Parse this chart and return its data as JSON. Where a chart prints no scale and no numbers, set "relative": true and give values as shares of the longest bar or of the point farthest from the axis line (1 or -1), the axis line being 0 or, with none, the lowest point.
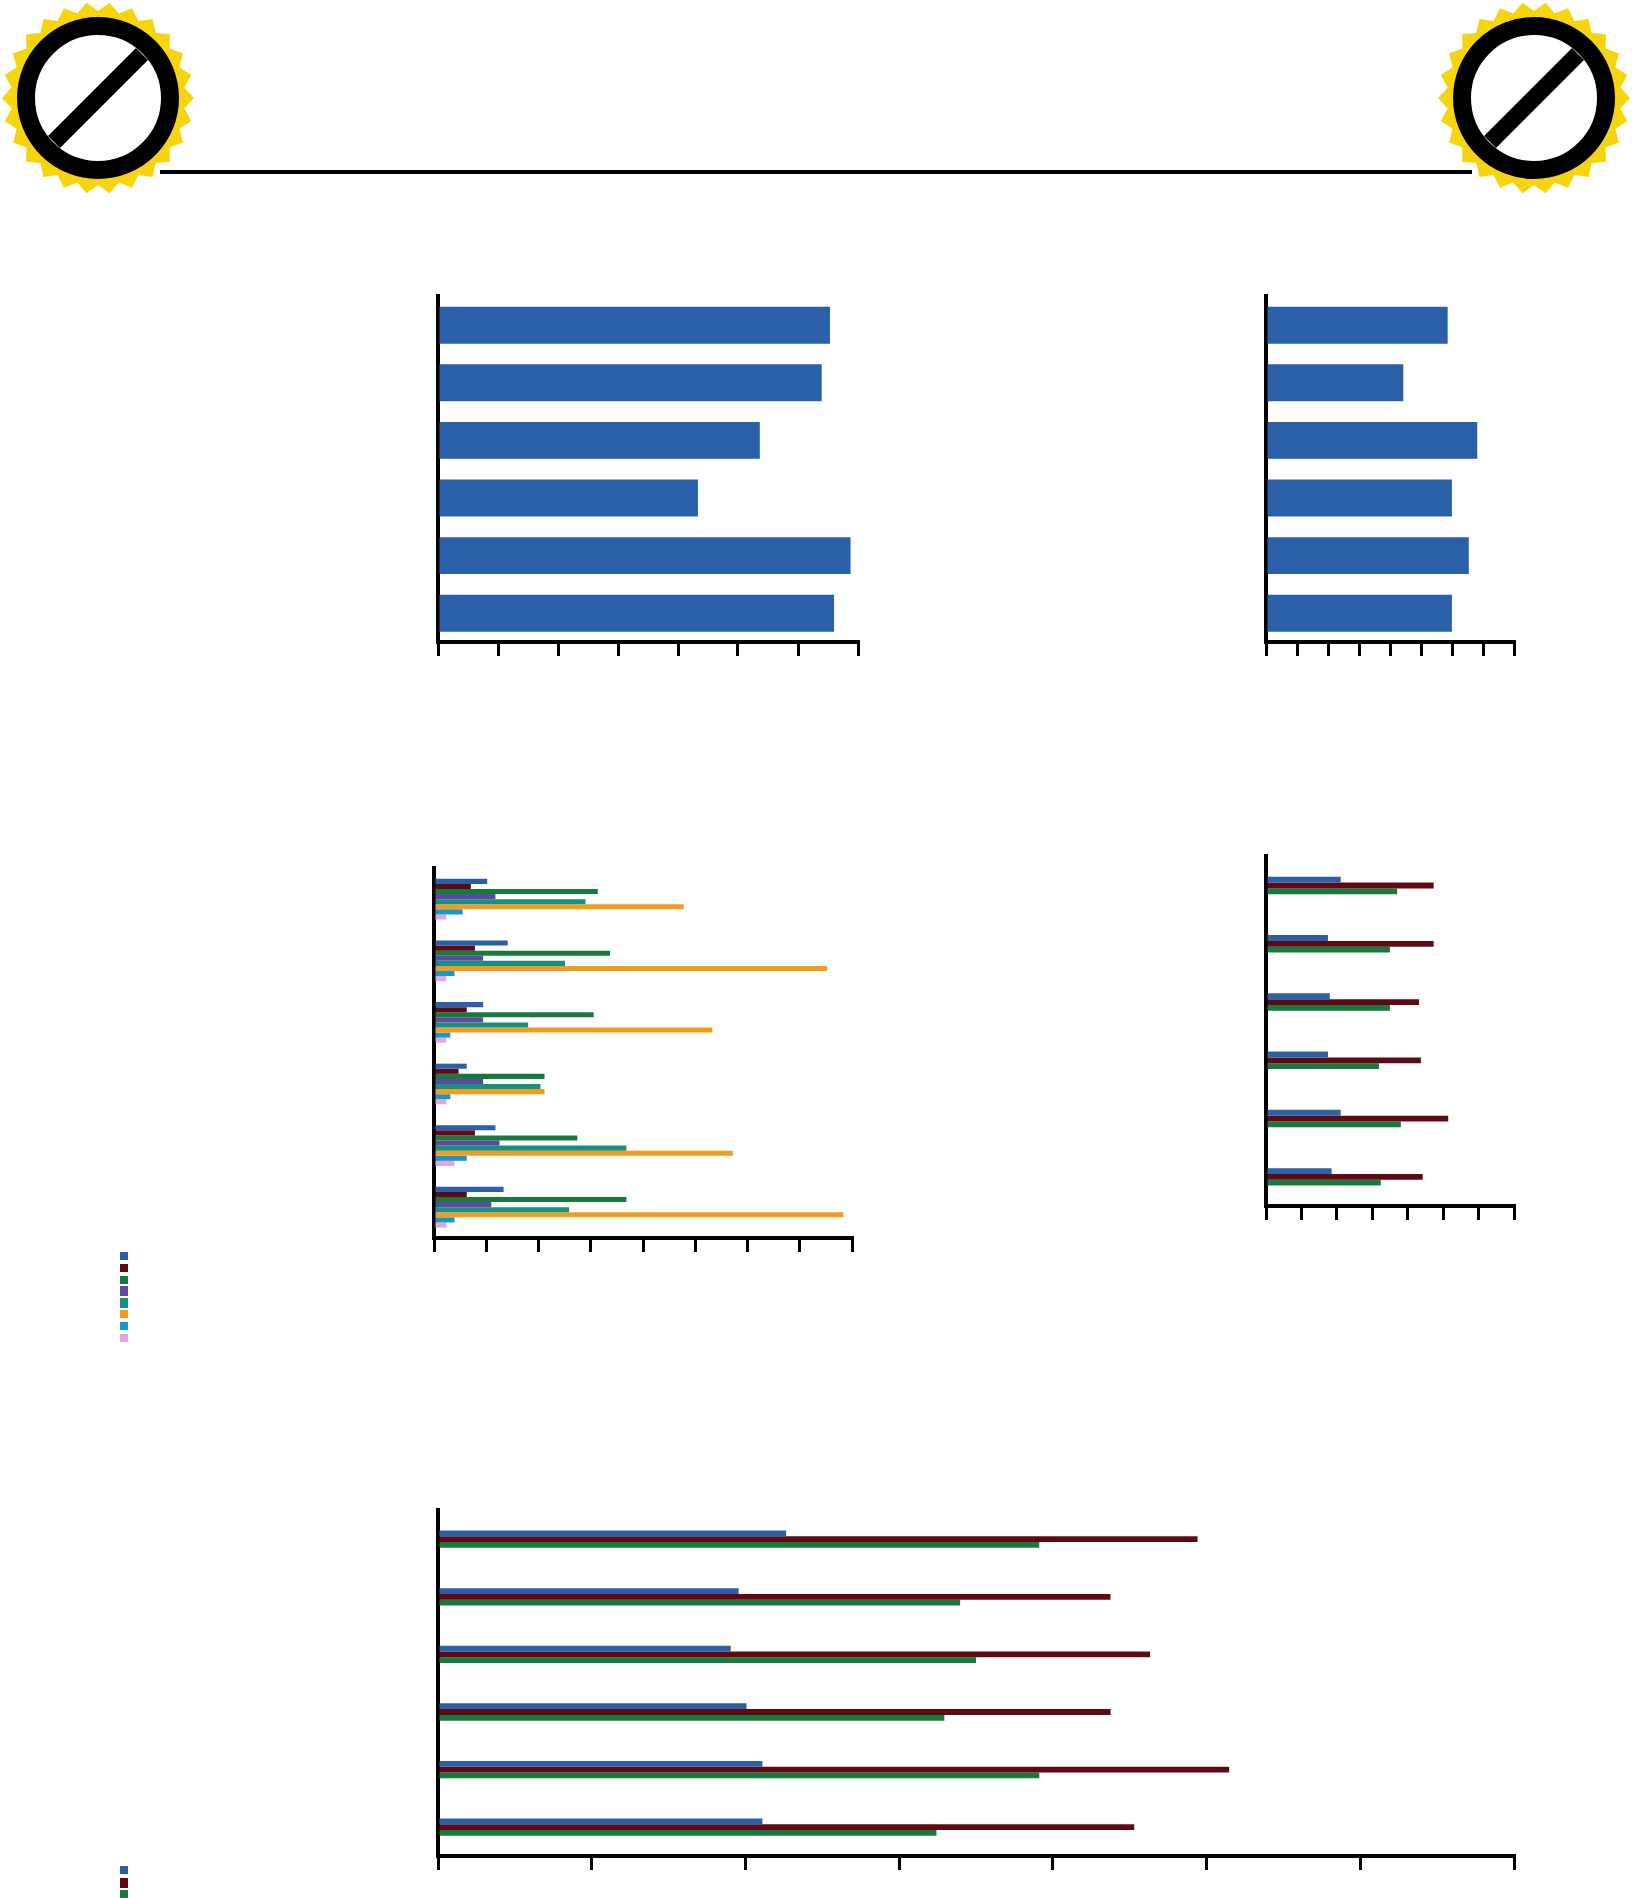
{
  "chart_data": [
    {
      "type": "bar",
      "orientation": "horizontal",
      "relative": true,
      "categories": [
        null,
        null,
        null,
        null,
        null,
        null
      ],
      "color": "#2a5faa",
      "values": [
        0.95,
        0.93,
        0.78,
        0.63,
        1,
        0.96
      ]
    },
    {
      "type": "bar",
      "orientation": "horizontal",
      "relative": true,
      "categories": [
        null,
        null,
        null,
        null,
        null,
        null
      ],
      "color": "#2a5faa",
      "values": [
        0.86,
        0.65,
        1,
        0.88,
        0.96,
        0.88
      ]
    },
    {
      "type": "bar",
      "orientation": "horizontal",
      "relative": true,
      "categories": [
        null,
        null,
        null,
        null,
        null,
        null
      ],
      "series": [
        {
          "color": "#2d5fa6",
          "values": [
            0.13,
            0.18,
            0.12,
            0.08,
            0.15,
            0.17
          ]
        },
        {
          "color": "#5e0a14",
          "values": [
            0.09,
            0.1,
            0.08,
            0.06,
            0.1,
            0.08
          ]
        },
        {
          "color": "#177a3c",
          "values": [
            0.4,
            0.43,
            0.39,
            0.27,
            0.35,
            0.47
          ]
        },
        {
          "color": "#5b4ba0",
          "values": [
            0.15,
            0.12,
            0.12,
            0.12,
            0.16,
            0.14
          ]
        },
        {
          "color": "#17917f",
          "values": [
            0.37,
            0.32,
            0.23,
            0.26,
            0.47,
            0.33
          ]
        },
        {
          "color": "#f29c1f",
          "values": [
            0.61,
            0.96,
            0.68,
            0.27,
            0.73,
            1
          ]
        },
        {
          "color": "#1897c9",
          "values": [
            0.07,
            0.05,
            0.04,
            0.04,
            0.08,
            0.05
          ]
        },
        {
          "color": "#e6a5dc",
          "values": [
            0.03,
            0.03,
            0.03,
            0.03,
            0.05,
            0.03
          ]
        }
      ]
    },
    {
      "type": "bar",
      "orientation": "horizontal",
      "relative": true,
      "categories": [
        null,
        null,
        null,
        null,
        null,
        null
      ],
      "series": [
        {
          "color": "#2d5fa6",
          "values": [
            0.41,
            0.34,
            0.35,
            0.34,
            0.41,
            0.36
          ]
        },
        {
          "color": "#5e0a14",
          "values": [
            0.92,
            0.92,
            0.84,
            0.85,
            1,
            0.86
          ]
        },
        {
          "color": "#177a3c",
          "values": [
            0.72,
            0.68,
            0.68,
            0.62,
            0.74,
            0.63
          ]
        }
      ]
    },
    {
      "type": "bar",
      "orientation": "horizontal",
      "relative": true,
      "categories": [
        null,
        null,
        null,
        null,
        null,
        null
      ],
      "series": [
        {
          "color": "#2d5fa6",
          "values": [
            0.44,
            0.38,
            0.37,
            0.39,
            0.41,
            0.41
          ]
        },
        {
          "color": "#5e0a14",
          "values": [
            0.96,
            0.85,
            0.9,
            0.85,
            1,
            0.88
          ]
        },
        {
          "color": "#177a3c",
          "values": [
            0.76,
            0.66,
            0.68,
            0.64,
            0.76,
            0.63
          ]
        }
      ]
    }
  ]
}
